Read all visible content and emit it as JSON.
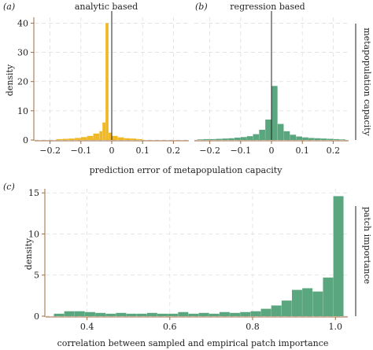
{
  "chart_data": [
    {
      "type": "bar",
      "panel_label": "(a)",
      "title": "analytic based",
      "ylabel": "density",
      "xlim": [
        -0.25,
        0.25
      ],
      "ylim": [
        0,
        42
      ],
      "yticks": [
        0,
        10,
        20,
        30,
        40
      ],
      "xticks": [
        "−0.2",
        "−0.1",
        "0",
        "0.1",
        "0.2"
      ],
      "xtick_values": [
        -0.2,
        -0.1,
        0,
        0.1,
        0.2
      ],
      "grid": true,
      "color": "#f0b923",
      "reference_line_x": 0,
      "bins": [
        {
          "x0": -0.18,
          "x1": -0.16,
          "y": 0.3
        },
        {
          "x0": -0.16,
          "x1": -0.14,
          "y": 0.4
        },
        {
          "x0": -0.14,
          "x1": -0.12,
          "y": 0.5
        },
        {
          "x0": -0.12,
          "x1": -0.1,
          "y": 0.7
        },
        {
          "x0": -0.1,
          "x1": -0.08,
          "y": 1.0
        },
        {
          "x0": -0.08,
          "x1": -0.06,
          "y": 1.4
        },
        {
          "x0": -0.06,
          "x1": -0.04,
          "y": 2.2
        },
        {
          "x0": -0.04,
          "x1": -0.03,
          "y": 3.0
        },
        {
          "x0": -0.03,
          "x1": -0.02,
          "y": 6.0
        },
        {
          "x0": -0.02,
          "x1": -0.01,
          "y": 40.0
        },
        {
          "x0": -0.01,
          "x1": 0.0,
          "y": 2.5
        },
        {
          "x0": 0.0,
          "x1": 0.02,
          "y": 1.4
        },
        {
          "x0": 0.02,
          "x1": 0.04,
          "y": 0.9
        },
        {
          "x0": 0.04,
          "x1": 0.06,
          "y": 0.6
        },
        {
          "x0": 0.06,
          "x1": 0.08,
          "y": 0.5
        },
        {
          "x0": 0.08,
          "x1": 0.1,
          "y": 0.3
        }
      ]
    },
    {
      "type": "bar",
      "panel_label": "(b)",
      "title": "regression based",
      "strip_label": "metapopulation capacity",
      "xlim": [
        -0.25,
        0.25
      ],
      "ylim": [
        0,
        42
      ],
      "xticks": [
        "−0.2",
        "−0.1",
        "0",
        "0.1",
        "0.2"
      ],
      "xtick_values": [
        -0.2,
        -0.1,
        0,
        0.1,
        0.2
      ],
      "grid": true,
      "color": "#5aa67e",
      "reference_line_x": 0,
      "bins": [
        {
          "x0": -0.24,
          "x1": -0.22,
          "y": 0.2
        },
        {
          "x0": -0.22,
          "x1": -0.2,
          "y": 0.3
        },
        {
          "x0": -0.2,
          "x1": -0.18,
          "y": 0.3
        },
        {
          "x0": -0.18,
          "x1": -0.16,
          "y": 0.4
        },
        {
          "x0": -0.16,
          "x1": -0.14,
          "y": 0.5
        },
        {
          "x0": -0.14,
          "x1": -0.12,
          "y": 0.6
        },
        {
          "x0": -0.12,
          "x1": -0.1,
          "y": 0.8
        },
        {
          "x0": -0.1,
          "x1": -0.08,
          "y": 1.0
        },
        {
          "x0": -0.08,
          "x1": -0.06,
          "y": 1.3
        },
        {
          "x0": -0.06,
          "x1": -0.04,
          "y": 2.0
        },
        {
          "x0": -0.04,
          "x1": -0.02,
          "y": 3.5
        },
        {
          "x0": -0.02,
          "x1": 0.0,
          "y": 7.0
        },
        {
          "x0": 0.0,
          "x1": 0.02,
          "y": 18.5
        },
        {
          "x0": 0.02,
          "x1": 0.04,
          "y": 5.5
        },
        {
          "x0": 0.04,
          "x1": 0.06,
          "y": 3.0
        },
        {
          "x0": 0.06,
          "x1": 0.08,
          "y": 1.8
        },
        {
          "x0": 0.08,
          "x1": 0.1,
          "y": 1.2
        },
        {
          "x0": 0.1,
          "x1": 0.12,
          "y": 0.9
        },
        {
          "x0": 0.12,
          "x1": 0.14,
          "y": 0.7
        },
        {
          "x0": 0.14,
          "x1": 0.16,
          "y": 0.6
        },
        {
          "x0": 0.16,
          "x1": 0.18,
          "y": 0.5
        },
        {
          "x0": 0.18,
          "x1": 0.2,
          "y": 0.4
        },
        {
          "x0": 0.2,
          "x1": 0.22,
          "y": 0.3
        },
        {
          "x0": 0.22,
          "x1": 0.24,
          "y": 0.2
        }
      ]
    },
    {
      "type": "bar",
      "panel_label": "(c)",
      "ylabel": "density",
      "xlabel": "correlation between sampled and empirical patch importance",
      "strip_label": "patch importance",
      "xlim": [
        0.3,
        1.03
      ],
      "ylim": [
        0,
        15.5
      ],
      "yticks": [
        0,
        5,
        10,
        15
      ],
      "xticks": [
        "0.4",
        "0.6",
        "0.8",
        "1.0"
      ],
      "xtick_values": [
        0.4,
        0.6,
        0.8,
        1.0
      ],
      "grid": true,
      "color": "#5aa67e",
      "bins": [
        {
          "x0": 0.32,
          "x1": 0.345,
          "y": 0.3
        },
        {
          "x0": 0.345,
          "x1": 0.37,
          "y": 0.6
        },
        {
          "x0": 0.37,
          "x1": 0.395,
          "y": 0.6
        },
        {
          "x0": 0.395,
          "x1": 0.42,
          "y": 0.5
        },
        {
          "x0": 0.42,
          "x1": 0.445,
          "y": 0.4
        },
        {
          "x0": 0.445,
          "x1": 0.47,
          "y": 0.3
        },
        {
          "x0": 0.47,
          "x1": 0.495,
          "y": 0.4
        },
        {
          "x0": 0.495,
          "x1": 0.52,
          "y": 0.3
        },
        {
          "x0": 0.52,
          "x1": 0.545,
          "y": 0.3
        },
        {
          "x0": 0.545,
          "x1": 0.57,
          "y": 0.4
        },
        {
          "x0": 0.57,
          "x1": 0.595,
          "y": 0.3
        },
        {
          "x0": 0.595,
          "x1": 0.62,
          "y": 0.3
        },
        {
          "x0": 0.62,
          "x1": 0.645,
          "y": 0.5
        },
        {
          "x0": 0.645,
          "x1": 0.67,
          "y": 0.3
        },
        {
          "x0": 0.67,
          "x1": 0.695,
          "y": 0.4
        },
        {
          "x0": 0.695,
          "x1": 0.72,
          "y": 0.3
        },
        {
          "x0": 0.72,
          "x1": 0.745,
          "y": 0.5
        },
        {
          "x0": 0.745,
          "x1": 0.77,
          "y": 0.4
        },
        {
          "x0": 0.77,
          "x1": 0.795,
          "y": 0.5
        },
        {
          "x0": 0.795,
          "x1": 0.82,
          "y": 0.6
        },
        {
          "x0": 0.82,
          "x1": 0.845,
          "y": 0.9
        },
        {
          "x0": 0.845,
          "x1": 0.87,
          "y": 1.3
        },
        {
          "x0": 0.87,
          "x1": 0.895,
          "y": 1.9
        },
        {
          "x0": 0.895,
          "x1": 0.92,
          "y": 3.2
        },
        {
          "x0": 0.92,
          "x1": 0.945,
          "y": 3.4
        },
        {
          "x0": 0.945,
          "x1": 0.97,
          "y": 3.0
        },
        {
          "x0": 0.97,
          "x1": 0.995,
          "y": 4.7
        },
        {
          "x0": 0.995,
          "x1": 1.02,
          "y": 14.6
        }
      ]
    }
  ],
  "shared": {
    "xlabel_ab": "prediction error of metapopulation capacity",
    "axis_color": "#9c6b3f",
    "grid_color": "#dedede"
  }
}
